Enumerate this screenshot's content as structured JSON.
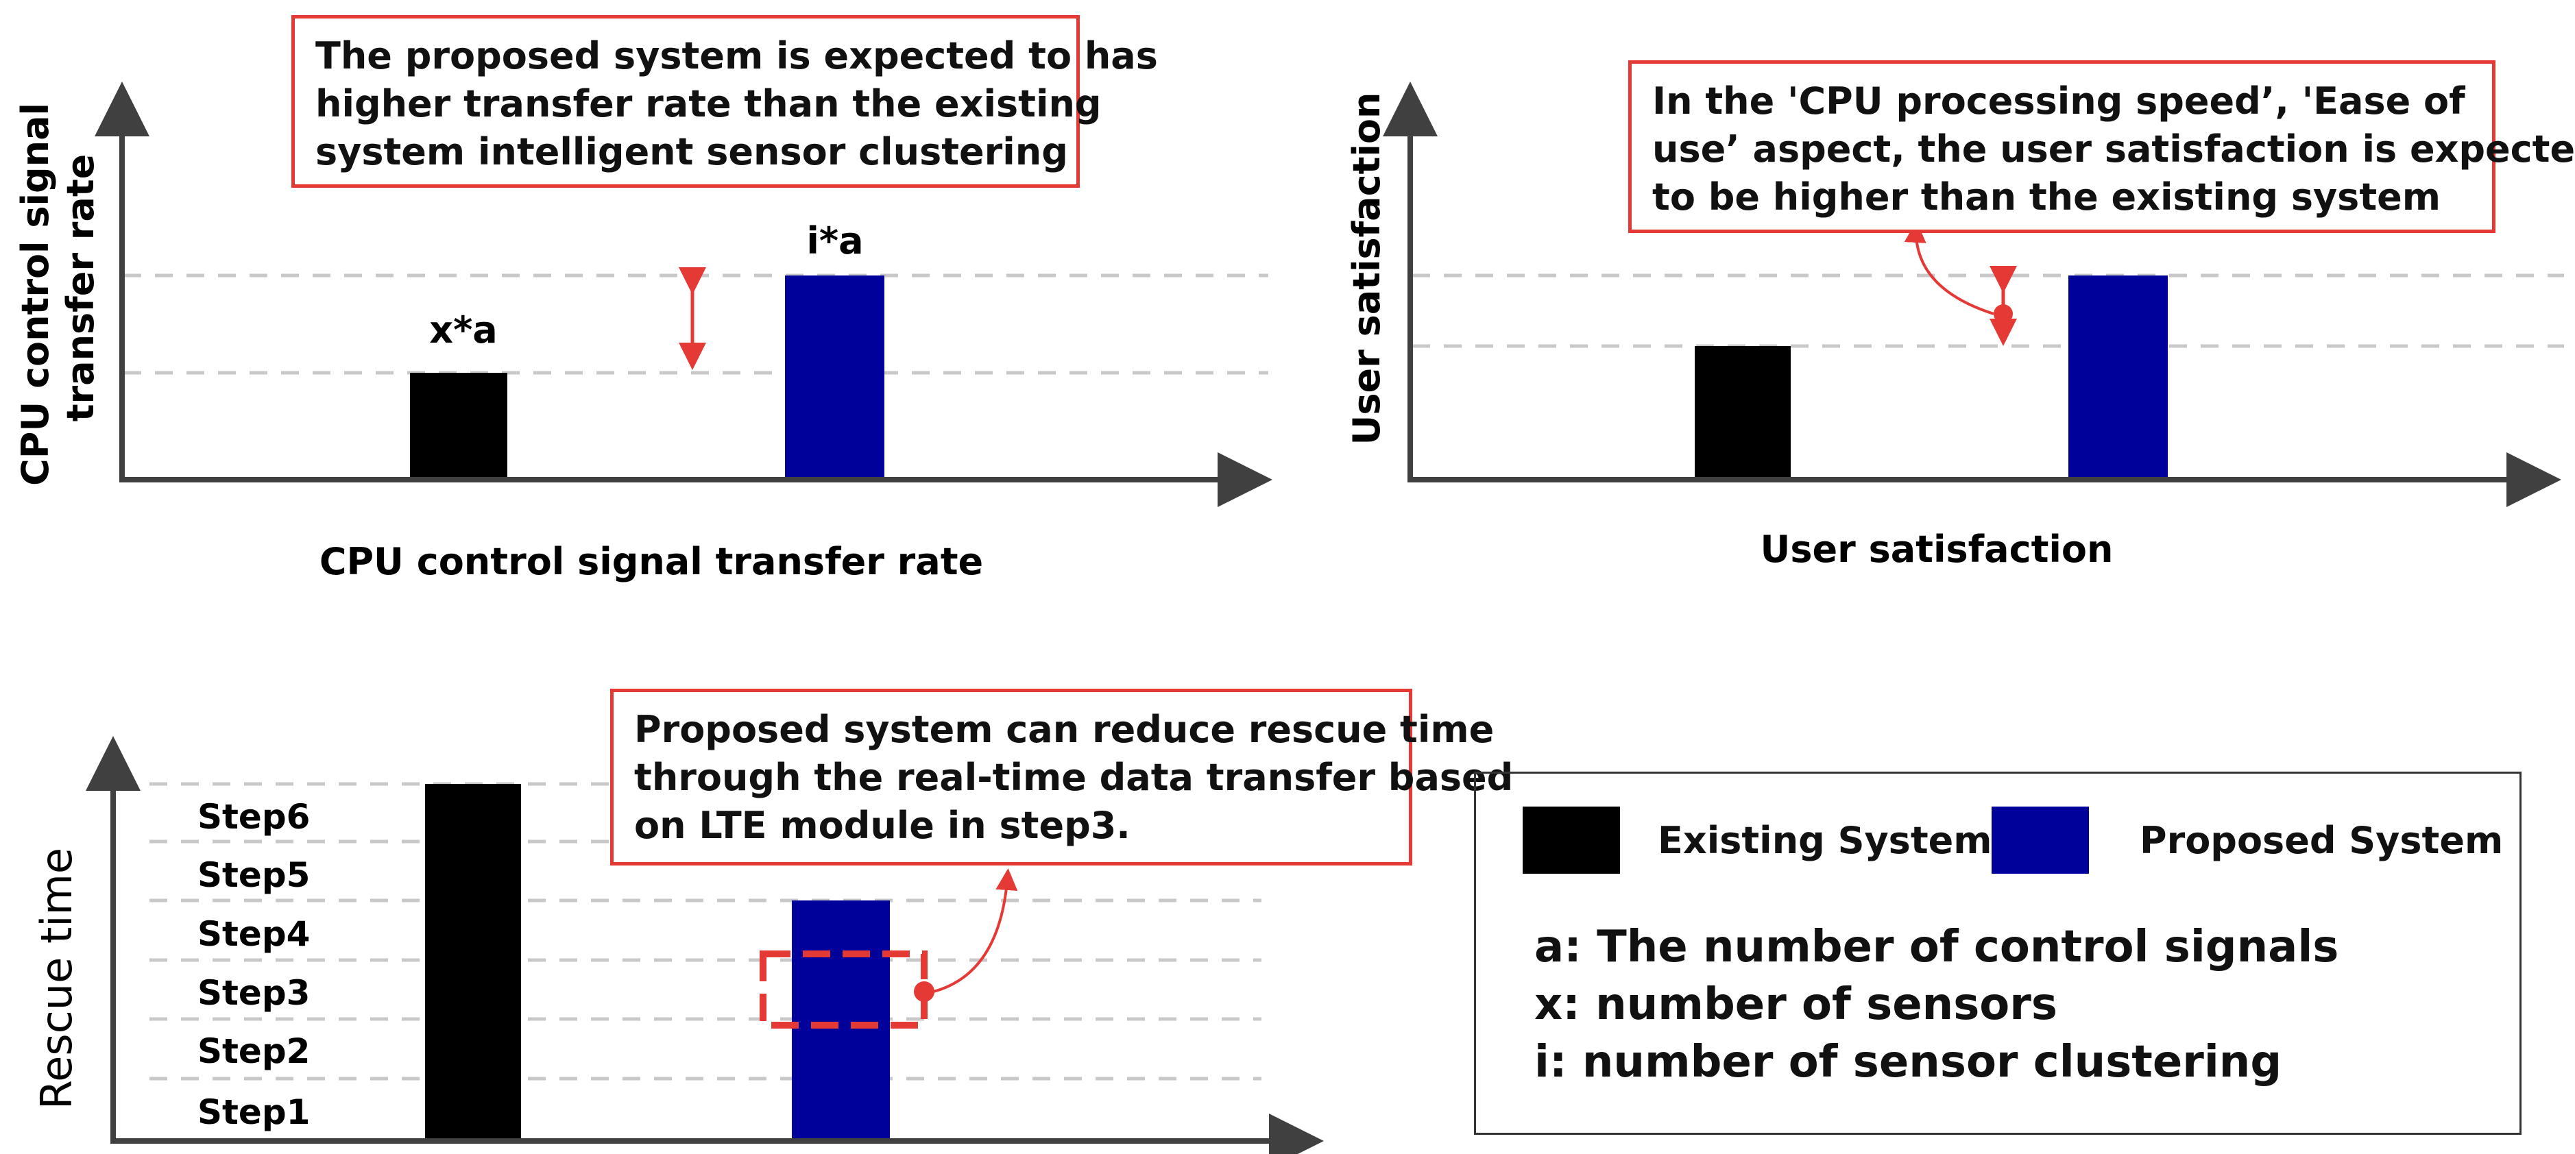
{
  "colors": {
    "existing": "#000000",
    "proposed": "#00009A",
    "callout_border": "#E53935",
    "annotation": "#E53935",
    "gridline": "#C8C8C8",
    "axis": "#404040"
  },
  "charts": {
    "transfer_rate": {
      "ylabel_line1": "CPU control signal",
      "ylabel_line2": "transfer rate",
      "xlabel": "CPU control signal transfer rate",
      "callout": [
        "The proposed system is expected to has",
        "higher transfer rate than the existing",
        "system intelligent sensor clustering"
      ],
      "bar_labels": [
        "x*a",
        "i*a"
      ]
    },
    "user_satisfaction": {
      "ylabel": "User satisfaction",
      "xlabel": "User satisfaction",
      "callout": [
        "In  the 'CPU processing speed’, 'Ease of",
        "use’ aspect, the user satisfaction is expected",
        "to be higher than the existing system"
      ]
    },
    "rescue_time": {
      "ylabel": "Rescue time",
      "callout": [
        "Proposed system can reduce rescue time",
        "through the real-time data transfer based",
        "on LTE module in step3."
      ]
    }
  },
  "legend": {
    "existing_label": "Existing System",
    "proposed_label": "Proposed System",
    "definitions": [
      "a: The number of control signals",
      "x: number of sensors",
      "i: number of sensor clustering"
    ]
  },
  "chart_data": [
    {
      "type": "bar",
      "categories": [
        "Existing System",
        "Proposed System"
      ],
      "values": [
        1,
        2
      ],
      "data_labels": [
        "x*a",
        "i*a"
      ],
      "ylabel": "CPU control signal transfer rate",
      "xlabel": "CPU control signal transfer rate",
      "title": "",
      "grid": "dashed reference lines at bar heights",
      "legend": "bottom-right"
    },
    {
      "type": "bar",
      "categories": [
        "Existing System",
        "Proposed System"
      ],
      "values": [
        1,
        1.5
      ],
      "ylabel": "User satisfaction",
      "xlabel": "User satisfaction",
      "title": "",
      "grid": "dashed reference lines at bar heights",
      "legend": "bottom-right"
    },
    {
      "type": "bar",
      "categories": [
        "Existing System",
        "Proposed System"
      ],
      "values": [
        6,
        4
      ],
      "y_tick_labels": [
        "Step1",
        "Step2",
        "Step3",
        "Step4",
        "Step5",
        "Step6"
      ],
      "ylabel": "Rescue time",
      "xlabel": "",
      "title": "",
      "grid": "dashed horizontal lines per step",
      "highlight": "Step3 on Proposed System",
      "legend": "bottom-right"
    }
  ]
}
